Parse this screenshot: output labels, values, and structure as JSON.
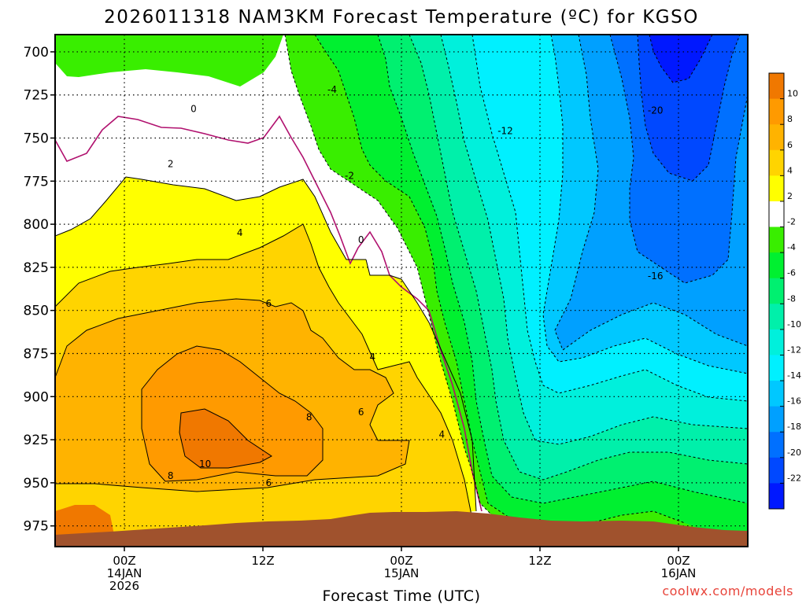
{
  "title": "2026011318 NAM3KM Forecast Temperature (ºC) for KGSO",
  "credit": "coolwx.com/models",
  "chart_data": {
    "type": "heatmap",
    "title": "2026011318 NAM3KM Forecast Temperature (ºC) for KGSO",
    "xlabel": "Forecast Time (UTC)",
    "ylabel": "",
    "y_ticks": [
      "700",
      "725",
      "750",
      "775",
      "800",
      "825",
      "850",
      "875",
      "900",
      "925",
      "950",
      "975"
    ],
    "x_ticks": [
      {
        "hour": 0,
        "line1": "00Z",
        "line2": "14JAN",
        "line3": "2026"
      },
      {
        "hour": 12,
        "line1": "12Z",
        "line2": "",
        "line3": ""
      },
      {
        "hour": 24,
        "line1": "00Z",
        "line2": "15JAN",
        "line3": ""
      },
      {
        "hour": 36,
        "line1": "12Z",
        "line2": "",
        "line3": ""
      },
      {
        "hour": 48,
        "line1": "00Z",
        "line2": "16JAN",
        "line3": ""
      }
    ],
    "xlim_hours": [
      -6,
      54
    ],
    "ylim_hpa": [
      690,
      987
    ],
    "grid": true,
    "colorbar_labels": [
      "10",
      "8",
      "6",
      "4",
      "2",
      "-2",
      "-4",
      "-6",
      "-8",
      "-10",
      "-12",
      "-14",
      "-16",
      "-18",
      "-20",
      "-22"
    ],
    "colorbar_colors": [
      "#f07800",
      "#ff9a00",
      "#ffb300",
      "#ffd400",
      "#ffff00",
      "#ffffff",
      "#39ee00",
      "#00f030",
      "#00f070",
      "#00f0aa",
      "#00f0dc",
      "#00f0ff",
      "#00c8ff",
      "#00a0ff",
      "#0070ff",
      "#0048ff",
      "#0018ff"
    ],
    "contour_labels": [
      {
        "text": "0",
        "hour": 6,
        "hpa": 733
      },
      {
        "text": "2",
        "hour": 4,
        "hpa": 765
      },
      {
        "text": "4",
        "hour": 10,
        "hpa": 805
      },
      {
        "text": "6",
        "hour": 12.5,
        "hpa": 846
      },
      {
        "text": "8",
        "hour": 16,
        "hpa": 912
      },
      {
        "text": "10",
        "hour": 7,
        "hpa": 939
      },
      {
        "text": "8",
        "hour": 4,
        "hpa": 946
      },
      {
        "text": "6",
        "hour": 12.5,
        "hpa": 950
      },
      {
        "text": "6",
        "hour": 20.5,
        "hpa": 909
      },
      {
        "text": "4",
        "hour": 21.5,
        "hpa": 877
      },
      {
        "text": "4",
        "hour": 27.5,
        "hpa": 922
      },
      {
        "text": "0",
        "hour": 20.5,
        "hpa": 809
      },
      {
        "text": "-2",
        "hour": 19.5,
        "hpa": 772
      },
      {
        "text": "-4",
        "hour": 18,
        "hpa": 722
      },
      {
        "text": "-12",
        "hour": 33,
        "hpa": 746
      },
      {
        "text": "-20",
        "hour": 46,
        "hpa": 734
      },
      {
        "text": "-16",
        "hour": 46,
        "hpa": 830
      }
    ]
  }
}
